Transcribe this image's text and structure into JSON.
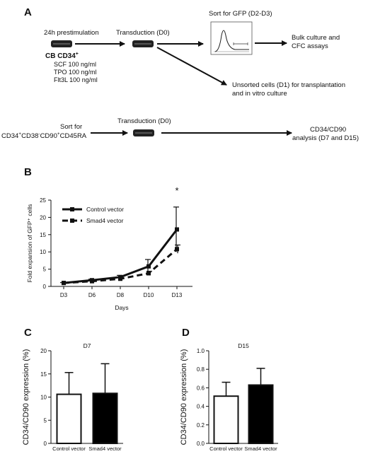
{
  "panel_a": {
    "letter": "A",
    "prestim_title": "24h prestimulation",
    "cb_label_main": "CB CD34",
    "cb_label_sup": "+",
    "scf": "SCF 100 ng/ml",
    "tpo": "TPO 100 ng/ml",
    "flt3l": "Flt3L 100 ng/ml",
    "transduction_1": "Transduction (D0)",
    "sort_gfp": "Sort for GFP (D2-D3)",
    "bulk_line1": "Bulk culture and",
    "bulk_line2": "CFC assays",
    "unsorted_line1": "Unsorted cells (D1) for transplantation",
    "unsorted_line2": "and in vitro culture",
    "sort_for": "Sort for",
    "phenotype_parts": [
      "CD34",
      "+",
      "CD38",
      "-",
      "CD90",
      "+",
      "CD45RA"
    ],
    "transduction_2": "Transduction (D0)",
    "analysis_line1": "CD34/CD90",
    "analysis_line2": "analysis (D7 and D15)"
  },
  "panel_b": {
    "letter": "B",
    "significance": "*"
  },
  "panel_c": {
    "letter": "C",
    "subtitle": "D7"
  },
  "panel_d": {
    "letter": "D",
    "subtitle": "D15"
  },
  "chart_data": [
    {
      "type": "line",
      "panel": "B",
      "categories": [
        "D3",
        "D6",
        "D8",
        "D10",
        "D13"
      ],
      "xlabel": "Days",
      "ylabel": "Fold expansion of GFP⁺ cells",
      "ylim": [
        0,
        25
      ],
      "yticks": [
        0,
        5,
        10,
        15,
        20,
        25
      ],
      "legend_position": "top-left",
      "series": [
        {
          "name": "Control vector",
          "style": "solid",
          "values": [
            1.0,
            1.8,
            2.7,
            5.8,
            16.5
          ],
          "errors": [
            0.1,
            0.3,
            0.5,
            2.0,
            6.5
          ]
        },
        {
          "name": "Smad4 vector",
          "style": "dashed",
          "values": [
            1.0,
            1.5,
            2.2,
            3.8,
            10.8
          ],
          "errors": [
            0.1,
            0.2,
            0.3,
            0.6,
            1.2
          ]
        }
      ]
    },
    {
      "type": "bar",
      "panel": "C",
      "title": "D7",
      "categories": [
        "Control vector",
        "Smad4 vector"
      ],
      "values": [
        10.6,
        10.8
      ],
      "errors": [
        4.7,
        6.4
      ],
      "fills": [
        "#ffffff",
        "#000000"
      ],
      "ylabel": "CD34/CD90 expression (%)",
      "ylim": [
        0,
        20
      ],
      "yticks": [
        0,
        5,
        10,
        15,
        20
      ]
    },
    {
      "type": "bar",
      "panel": "D",
      "title": "D15",
      "categories": [
        "Control vector",
        "Smad4 vector"
      ],
      "values": [
        0.51,
        0.63
      ],
      "errors": [
        0.15,
        0.18
      ],
      "fills": [
        "#ffffff",
        "#000000"
      ],
      "ylabel": "CD34/CD90 expression (%)",
      "ylim": [
        0,
        1.0
      ],
      "yticks": [
        0.0,
        0.2,
        0.4,
        0.6,
        0.8,
        1.0
      ],
      "ytick_labels": [
        "0.0",
        "0.2",
        "0.4",
        "0.6",
        "0.8",
        "1.0"
      ]
    }
  ]
}
